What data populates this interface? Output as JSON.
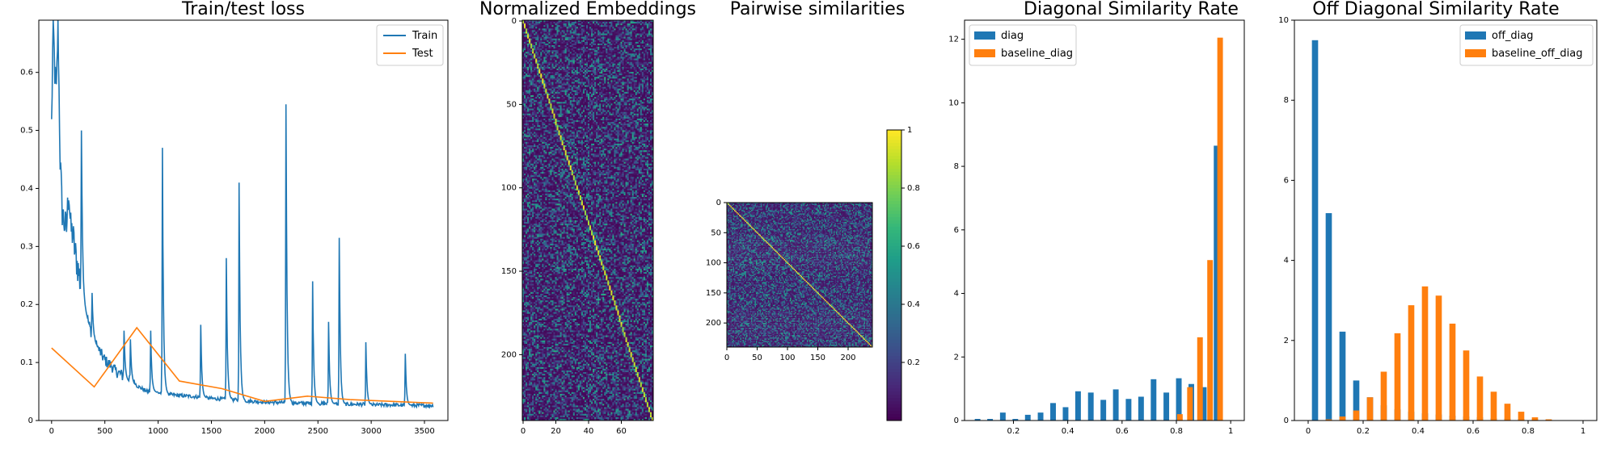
{
  "colors": {
    "blue": "#1f77b4",
    "orange": "#ff7f0e",
    "viridis": [
      "#440154",
      "#482878",
      "#3e4a89",
      "#31688e",
      "#26828e",
      "#1f9e89",
      "#35b779",
      "#6ece58",
      "#b5de2b",
      "#fde725"
    ]
  },
  "chart_data": [
    {
      "type": "line",
      "title": "Train/test loss",
      "xlim": [
        -120,
        3720
      ],
      "ylim": [
        0.0,
        0.69
      ],
      "xticks": [
        0,
        500,
        1000,
        1500,
        2000,
        2500,
        3000,
        3500
      ],
      "yticks": [
        0.0,
        0.1,
        0.2,
        0.3,
        0.4,
        0.5,
        0.6
      ],
      "legend": {
        "position": "upper right"
      },
      "series": [
        {
          "name": "Train",
          "color": "#1f77b4",
          "x": [
            0,
            15,
            30,
            45,
            60,
            80,
            100,
            120,
            140,
            160,
            180,
            200,
            220,
            240,
            260,
            280,
            300,
            330,
            360,
            390,
            420,
            450,
            480,
            520,
            560,
            600,
            650,
            700,
            750,
            800,
            850,
            900,
            950,
            1000,
            1100,
            1200,
            1300,
            1400,
            1500,
            1600,
            1700,
            1800,
            1900,
            2000,
            2100,
            2200,
            2300,
            2400,
            2500,
            2600,
            2700,
            2800,
            2900,
            3000,
            3100,
            3200,
            3300,
            3400,
            3500,
            3580
          ],
          "y": [
            0.51,
            0.69,
            0.6,
            0.56,
            0.69,
            0.45,
            0.36,
            0.34,
            0.33,
            0.4,
            0.33,
            0.32,
            0.29,
            0.27,
            0.25,
            0.22,
            0.2,
            0.18,
            0.16,
            0.14,
            0.13,
            0.12,
            0.11,
            0.1,
            0.095,
            0.085,
            0.08,
            0.07,
            0.065,
            0.06,
            0.055,
            0.05,
            0.05,
            0.048,
            0.045,
            0.043,
            0.042,
            0.04,
            0.038,
            0.037,
            0.036,
            0.034,
            0.033,
            0.032,
            0.031,
            0.031,
            0.03,
            0.03,
            0.029,
            0.029,
            0.028,
            0.028,
            0.028,
            0.027,
            0.027,
            0.027,
            0.026,
            0.026,
            0.026,
            0.026
          ],
          "spikes": [
            [
              280,
              0.5
            ],
            [
              380,
              0.22
            ],
            [
              680,
              0.155
            ],
            [
              740,
              0.14
            ],
            [
              930,
              0.155
            ],
            [
              1040,
              0.47
            ],
            [
              1400,
              0.165
            ],
            [
              1640,
              0.28
            ],
            [
              1760,
              0.41
            ],
            [
              2200,
              0.545
            ],
            [
              2450,
              0.24
            ],
            [
              2600,
              0.17
            ],
            [
              2700,
              0.315
            ],
            [
              2950,
              0.135
            ],
            [
              3320,
              0.115
            ]
          ]
        },
        {
          "name": "Test",
          "color": "#ff7f0e",
          "x": [
            0,
            400,
            800,
            1200,
            1600,
            2000,
            2400,
            2800,
            3200,
            3580
          ],
          "y": [
            0.125,
            0.058,
            0.16,
            0.068,
            0.055,
            0.033,
            0.042,
            0.036,
            0.033,
            0.03
          ]
        }
      ]
    },
    {
      "type": "heatmap",
      "title": "Normalized Embeddings",
      "xticks": [
        0,
        20,
        40,
        60
      ],
      "yticks": [
        0,
        50,
        100,
        150,
        200
      ],
      "cols": 80,
      "rows": 240,
      "colormap": "viridis",
      "diagonal": true
    },
    {
      "type": "heatmap",
      "title": "Pairwise similarities",
      "xticks": [
        0,
        50,
        100,
        150,
        200
      ],
      "yticks": [
        0,
        50,
        100,
        150,
        200
      ],
      "size": 240,
      "colormap": "viridis",
      "diagonal": true,
      "colorbar": {
        "ticks": [
          0.2,
          0.4,
          0.6,
          0.8,
          1.0
        ],
        "range": [
          0.0,
          1.0
        ]
      }
    },
    {
      "type": "bar",
      "title": "Diagonal Similarity Rate",
      "xlim": [
        0.02,
        1.05
      ],
      "ylim": [
        0,
        12.6
      ],
      "xticks": [
        0.2,
        0.4,
        0.6,
        0.8,
        1.0
      ],
      "yticks": [
        0,
        2,
        4,
        6,
        8,
        10,
        12
      ],
      "legend": {
        "position": "upper left"
      },
      "bin_width": 0.046,
      "series": [
        {
          "name": "diag",
          "color": "#1f77b4",
          "x": [
            0.068,
            0.114,
            0.161,
            0.207,
            0.253,
            0.3,
            0.346,
            0.392,
            0.438,
            0.485,
            0.531,
            0.577,
            0.624,
            0.67,
            0.716,
            0.763,
            0.809,
            0.855,
            0.901,
            0.948
          ],
          "values": [
            0.05,
            0.05,
            0.25,
            0.05,
            0.18,
            0.25,
            0.55,
            0.42,
            0.92,
            0.88,
            0.65,
            0.98,
            0.68,
            0.75,
            1.3,
            0.88,
            1.33,
            1.15,
            1.05,
            8.65
          ]
        },
        {
          "name": "baseline_diag",
          "color": "#ff7f0e",
          "x": [
            0.776,
            0.813,
            0.85,
            0.887,
            0.924,
            0.961
          ],
          "values": [
            0.0,
            0.2,
            1.05,
            2.62,
            5.05,
            12.05
          ]
        }
      ]
    },
    {
      "type": "bar",
      "title": "Off Diagonal Similarity Rate",
      "xlim": [
        -0.05,
        1.05
      ],
      "ylim": [
        0,
        10
      ],
      "xticks": [
        0.0,
        0.2,
        0.4,
        0.6,
        0.8,
        1.0
      ],
      "yticks": [
        0,
        2,
        4,
        6,
        8,
        10
      ],
      "legend": {
        "position": "upper right"
      },
      "bin_width": 0.05,
      "series": [
        {
          "name": "off_diag",
          "color": "#1f77b4",
          "x": [
            0.025,
            0.075,
            0.125,
            0.175,
            0.225,
            0.275,
            0.325,
            0.375,
            0.425,
            0.475,
            0.525,
            0.575,
            0.625,
            0.675,
            0.725,
            0.775,
            0.825,
            0.875,
            0.925,
            0.975
          ],
          "values": [
            9.5,
            5.18,
            2.22,
            1.0,
            0.58,
            0.38,
            0.28,
            0.22,
            0.18,
            0.15,
            0.12,
            0.1,
            0.08,
            0.06,
            0.05,
            0.04,
            0.03,
            0.02,
            0.01,
            0.01
          ]
        },
        {
          "name": "baseline_off_diag",
          "color": "#ff7f0e",
          "x": [
            0.075,
            0.125,
            0.175,
            0.225,
            0.275,
            0.325,
            0.375,
            0.425,
            0.475,
            0.525,
            0.575,
            0.625,
            0.675,
            0.725,
            0.775,
            0.825,
            0.875,
            0.925
          ],
          "values": [
            0.03,
            0.1,
            0.25,
            0.58,
            1.22,
            2.18,
            2.88,
            3.35,
            3.12,
            2.42,
            1.75,
            1.1,
            0.72,
            0.42,
            0.22,
            0.08,
            0.03,
            0.01
          ]
        }
      ]
    }
  ]
}
